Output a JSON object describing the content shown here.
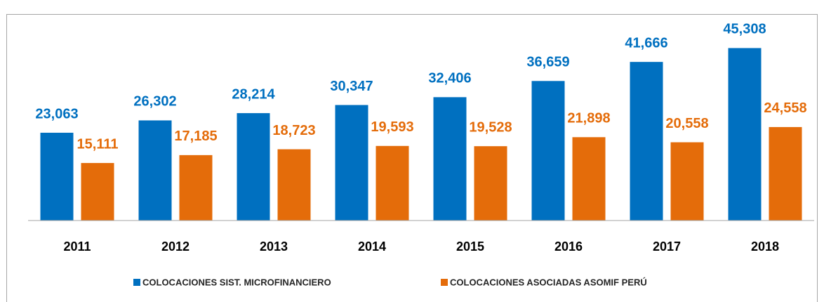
{
  "chart_data": {
    "type": "bar",
    "categories": [
      "2011",
      "2012",
      "2013",
      "2014",
      "2015",
      "2016",
      "2017",
      "2018"
    ],
    "series": [
      {
        "name": "COLOCACIONES SIST. MICROFINANCIERO",
        "color": "#0070c0",
        "values": [
          23063,
          26302,
          28214,
          30347,
          32406,
          36659,
          41666,
          45308
        ],
        "value_labels": [
          "23,063",
          "26,302",
          "28,214",
          "30,347",
          "32,406",
          "36,659",
          "41,666",
          "45,308"
        ]
      },
      {
        "name": "COLOCACIONES ASOCIADAS ASOMIF PERÚ",
        "color": "#e46c0a",
        "values": [
          15111,
          17185,
          18723,
          19593,
          19528,
          21898,
          20558,
          24558
        ],
        "value_labels": [
          "15,111",
          "17,185",
          "18,723",
          "19,593",
          "19,528",
          "21,898",
          "20,558",
          "24,558"
        ]
      }
    ],
    "ylim": [
      0,
      50000
    ],
    "legend": "bottom"
  }
}
